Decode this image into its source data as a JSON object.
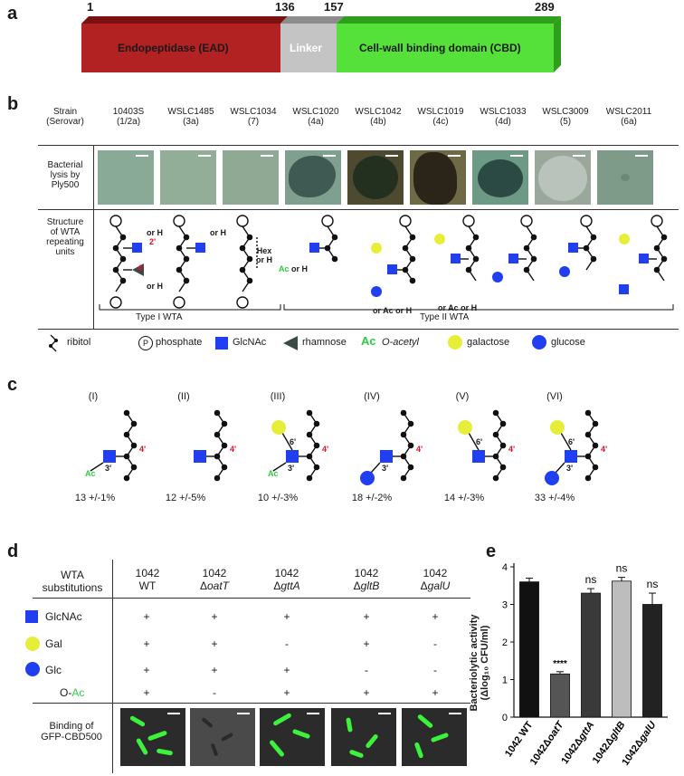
{
  "panels": {
    "a": "a",
    "b": "b",
    "c": "c",
    "d": "d",
    "e": "e"
  },
  "panel_a": {
    "positions": [
      "1",
      "136",
      "157",
      "289"
    ],
    "domains": [
      {
        "label": "Endopeptidase (EAD)",
        "color": "#b22222"
      },
      {
        "label": "Linker",
        "color": "#c0c0c0"
      },
      {
        "label": "Cell-wall binding domain (CBD)",
        "color": "#55e03a"
      }
    ]
  },
  "panel_b": {
    "strain_header": [
      "Strain",
      "(Serovar)"
    ],
    "strains": [
      {
        "name": "10403S",
        "serovar": "(1/2a)"
      },
      {
        "name": "WSLC1485",
        "serovar": "(3a)"
      },
      {
        "name": "WSLC1034",
        "serovar": "(7)"
      },
      {
        "name": "WSLC1020",
        "serovar": "(4a)"
      },
      {
        "name": "WSLC1042",
        "serovar": "(4b)"
      },
      {
        "name": "WSLC1019",
        "serovar": "(4c)"
      },
      {
        "name": "WSLC1033",
        "serovar": "(4d)"
      },
      {
        "name": "WSLC3009",
        "serovar": "(5)"
      },
      {
        "name": "WSLC2011",
        "serovar": "(6a)"
      }
    ],
    "lysis_label": [
      "Bacterial",
      "lysis by",
      "Ply500"
    ],
    "structure_label": [
      "Structure",
      "of WTA",
      "repeating",
      "units"
    ],
    "type1": "Type I WTA",
    "type2": "Type II WTA",
    "hex_label": [
      "Hex",
      "or H"
    ],
    "or_h": "or H",
    "or_ac_or_h": "or Ac or H",
    "ac_or_h": "Ac or H",
    "legend": [
      {
        "icon": "ribitol",
        "label": "ribitol"
      },
      {
        "icon": "phosphate",
        "label": "phosphate"
      },
      {
        "icon": "glcnac",
        "label": "GlcNAc"
      },
      {
        "icon": "rhamnose",
        "label": "rhamnose"
      },
      {
        "icon": "oacetyl",
        "label": "O-acetyl"
      },
      {
        "icon": "galactose",
        "label": "galactose"
      },
      {
        "icon": "glucose",
        "label": "glucose"
      }
    ],
    "ac_symbol": "Ac",
    "p_symbol": "P"
  },
  "panel_c": {
    "variants": [
      {
        "roman": "(I)",
        "value": "13 +/-1%"
      },
      {
        "roman": "(II)",
        "value": "12 +/-5%"
      },
      {
        "roman": "(III)",
        "value": "10 +/-3%"
      },
      {
        "roman": "(IV)",
        "value": "18 +/-2%"
      },
      {
        "roman": "(V)",
        "value": "14 +/-3%"
      },
      {
        "roman": "(VI)",
        "value": "33 +/-4%"
      }
    ],
    "pos_labels": {
      "p4": "4'",
      "p3": "3'",
      "p6": "6'",
      "ac": "Ac"
    }
  },
  "panel_d": {
    "header_label": [
      "WTA",
      "substitutions"
    ],
    "columns": [
      {
        "top": "1042",
        "bottom": "WT",
        "delta": "",
        "gene": ""
      },
      {
        "top": "1042",
        "bottom": "",
        "delta": "Δ",
        "gene": "oatT"
      },
      {
        "top": "1042",
        "bottom": "",
        "delta": "Δ",
        "gene": "gttA"
      },
      {
        "top": "1042",
        "bottom": "",
        "delta": "Δ",
        "gene": "gltB"
      },
      {
        "top": "1042",
        "bottom": "",
        "delta": "Δ",
        "gene": "galU"
      }
    ],
    "rows": [
      {
        "label": "GlcNAc",
        "icon": "glcnac",
        "values": [
          "+",
          "+",
          "+",
          "+",
          "+"
        ]
      },
      {
        "label": "Gal",
        "icon": "galactose",
        "values": [
          "+",
          "+",
          "-",
          "+",
          "-"
        ]
      },
      {
        "label": "Glc",
        "icon": "glucose",
        "values": [
          "+",
          "+",
          "+",
          "-",
          "-"
        ]
      },
      {
        "label_prefix": "O-",
        "label_ac": "Ac",
        "icon": "none",
        "values": [
          "+",
          "-",
          "+",
          "+",
          "+"
        ]
      }
    ],
    "binding_label": [
      "Binding of",
      "GFP-CBD500"
    ]
  },
  "chart_data": {
    "type": "bar",
    "ylabel_line1": "Bacteriolytic activity",
    "ylabel_line2": "(Δlog₁₀ CFU/ml)",
    "categories": [
      "1042 WT",
      "1042ΔoatT",
      "1042ΔgttA",
      "1042ΔgltB",
      "1042ΔgalU"
    ],
    "category_parts": [
      {
        "a": "1042 WT",
        "b": ""
      },
      {
        "a": "1042Δ",
        "b": "oatT"
      },
      {
        "a": "1042Δ",
        "b": "gttA"
      },
      {
        "a": "1042Δ",
        "b": "gltB"
      },
      {
        "a": "1042Δ",
        "b": "galU"
      }
    ],
    "values": [
      3.6,
      1.15,
      3.3,
      3.62,
      3.0
    ],
    "errors": [
      0.1,
      0.06,
      0.12,
      0.1,
      0.3
    ],
    "annotations": [
      "",
      "****",
      "ns",
      "ns",
      "ns"
    ],
    "colors": [
      "#111111",
      "#555555",
      "#3a3a3a",
      "#bdbdbd",
      "#222222"
    ],
    "yticks": [
      "0",
      "1",
      "2",
      "3",
      "4"
    ],
    "ylim": [
      0,
      4
    ]
  }
}
